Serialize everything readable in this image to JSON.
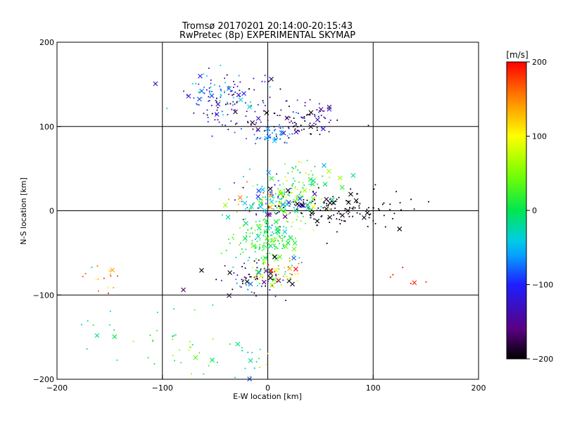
{
  "chart_data": {
    "type": "scatter",
    "title": "Tromsø 20170201 20:14:00-20:15:43",
    "subtitle": "RwPretec (8p) EXPERIMENTAL SKYMAP",
    "xlabel": "E-W location [km]",
    "ylabel": "N-S location [km]",
    "xlim": [
      -200,
      200
    ],
    "ylim": [
      -200,
      200
    ],
    "x_ticks": [
      -200,
      -100,
      0,
      100,
      200
    ],
    "y_ticks": [
      -200,
      -100,
      0,
      100,
      200
    ],
    "grid": true,
    "colorbar": {
      "unit_label": "[m/s]",
      "min": -200,
      "max": 200,
      "ticks": [
        -200,
        -100,
        0,
        100,
        200
      ],
      "colormap": "rainbow"
    },
    "clusters": [
      {
        "x": -30,
        "y": 130,
        "spread": [
          22,
          18
        ],
        "v": -140,
        "vspread": 50,
        "n": 120
      },
      {
        "x": -55,
        "y": 140,
        "spread": [
          12,
          12
        ],
        "v": -60,
        "vspread": 30,
        "n": 35
      },
      {
        "x": 30,
        "y": 105,
        "spread": [
          20,
          10
        ],
        "v": -170,
        "vspread": 35,
        "n": 90
      },
      {
        "x": 5,
        "y": 90,
        "spread": [
          10,
          5
        ],
        "v": -70,
        "vspread": 15,
        "n": 40
      },
      {
        "x": 10,
        "y": 10,
        "spread": [
          25,
          12
        ],
        "v": -20,
        "vspread": 90,
        "n": 200
      },
      {
        "x": 60,
        "y": 0,
        "spread": [
          25,
          12
        ],
        "v": -200,
        "vspread": 10,
        "n": 90
      },
      {
        "x": 0,
        "y": -35,
        "spread": [
          15,
          15
        ],
        "v": 10,
        "vspread": 25,
        "n": 180
      },
      {
        "x": 30,
        "y": 35,
        "spread": [
          15,
          12
        ],
        "v": 20,
        "vspread": 50,
        "n": 70
      },
      {
        "x": -20,
        "y": -80,
        "spread": [
          20,
          12
        ],
        "v": -170,
        "vspread": 60,
        "n": 70
      },
      {
        "x": 10,
        "y": -75,
        "spread": [
          15,
          10
        ],
        "v": 80,
        "vspread": 80,
        "n": 50
      },
      {
        "x": -80,
        "y": -160,
        "spread": [
          25,
          20
        ],
        "v": 20,
        "vspread": 30,
        "n": 35
      },
      {
        "x": -160,
        "y": -130,
        "spread": [
          15,
          25
        ],
        "v": -30,
        "vspread": 30,
        "n": 10
      },
      {
        "x": -150,
        "y": -80,
        "spread": [
          10,
          10
        ],
        "v": 150,
        "vspread": 40,
        "n": 15
      },
      {
        "x": -20,
        "y": -180,
        "spread": [
          12,
          12
        ],
        "v": -10,
        "vspread": 40,
        "n": 20
      },
      {
        "x": 140,
        "y": -80,
        "spread": [
          15,
          8
        ],
        "v": 200,
        "vspread": 10,
        "n": 6
      },
      {
        "x": 100,
        "y": 0,
        "spread": [
          25,
          12
        ],
        "v": -200,
        "vspread": 10,
        "n": 30
      }
    ]
  }
}
